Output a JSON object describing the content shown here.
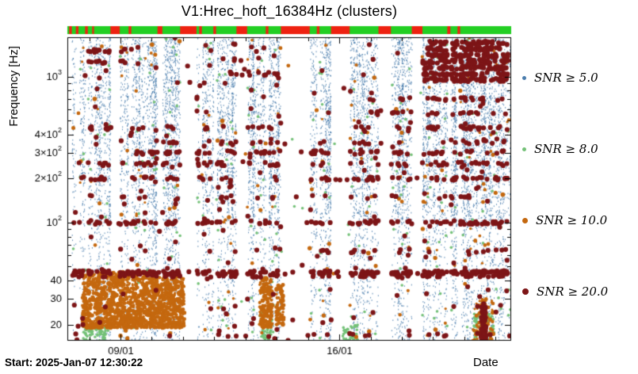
{
  "chart_data": {
    "type": "scatter",
    "title": "V1:Hrec_hoft_16384Hz (clusters)",
    "start_label": "Start: 2025-Jan-07 12:30:22",
    "x_axis": {
      "label": "Date",
      "range_days": [
        7.3,
        21.5
      ],
      "ticks": [
        {
          "day": 9,
          "label": "09/01"
        },
        {
          "day": 16,
          "label": "16/01"
        }
      ],
      "minor_days": [
        8,
        10,
        11,
        12,
        13,
        14,
        15,
        17,
        18,
        19,
        20,
        21
      ]
    },
    "y_axis": {
      "label": "Frequency [Hz]",
      "scale": "log",
      "range_hz": [
        15.5,
        1860
      ],
      "major": [
        {
          "v": 1000,
          "base": "10",
          "exp": "3"
        },
        {
          "v": 400,
          "base": "4×10",
          "exp": "2"
        },
        {
          "v": 300,
          "base": "3×10",
          "exp": "2"
        },
        {
          "v": 200,
          "base": "2×10",
          "exp": "2"
        },
        {
          "v": 100,
          "base": "10",
          "exp": "2"
        },
        {
          "v": 40,
          "base": "40"
        },
        {
          "v": 30,
          "base": "30"
        },
        {
          "v": 20,
          "base": "20"
        }
      ],
      "minor": [
        50,
        60,
        70,
        80,
        90,
        500,
        600,
        700,
        800,
        900
      ]
    },
    "status_bar": {
      "ok_color": "#23cf23",
      "bad_color": "#ee2211",
      "bad_segments": [
        [
          0.004,
          0.01
        ],
        [
          0.019,
          0.025
        ],
        [
          0.04,
          0.046
        ],
        [
          0.056,
          0.06
        ],
        [
          0.097,
          0.118
        ],
        [
          0.138,
          0.144
        ],
        [
          0.203,
          0.214
        ],
        [
          0.254,
          0.291
        ],
        [
          0.297,
          0.303
        ],
        [
          0.329,
          0.335
        ],
        [
          0.381,
          0.405
        ],
        [
          0.447,
          0.453
        ],
        [
          0.481,
          0.546
        ],
        [
          0.562,
          0.568
        ],
        [
          0.594,
          0.636
        ],
        [
          0.701,
          0.729
        ],
        [
          0.776,
          0.8
        ],
        [
          0.856,
          0.863
        ],
        [
          0.879,
          0.885
        ]
      ]
    },
    "legend": [
      {
        "label": "SNR ≥ 5.0",
        "color": "#4a7dad",
        "size": 5
      },
      {
        "label": "SNR ≥ 8.0",
        "color": "#74c178",
        "size": 5
      },
      {
        "label": "SNR ≥ 10.0",
        "color": "#c4680f",
        "size": 7
      },
      {
        "label": "SNR ≥ 20.0",
        "color": "#7d1517",
        "size": 8
      }
    ],
    "series": {
      "snr5": {
        "threshold": 5.0,
        "color": "#4a7dad",
        "count": 30000,
        "y_weights": [
          [
            200,
            1860,
            0.62
          ],
          [
            100,
            200,
            0.15
          ],
          [
            28,
            100,
            0.16
          ],
          [
            15.5,
            28,
            0.07
          ]
        ]
      },
      "snr8": {
        "threshold": 8.0,
        "color": "#74c178",
        "radius": 1.8,
        "scatter_count": 330,
        "clusters": [
          {
            "d0": 7.8,
            "d1": 8.6,
            "f0": 15.5,
            "f1": 20,
            "n": 70
          },
          {
            "d0": 13.5,
            "d1": 13.9,
            "f0": 15.5,
            "f1": 22,
            "n": 45
          },
          {
            "d0": 16.1,
            "d1": 16.6,
            "f0": 15.5,
            "f1": 20,
            "n": 35
          },
          {
            "d0": 20.3,
            "d1": 20.95,
            "f0": 15.5,
            "f1": 24,
            "n": 85
          }
        ]
      },
      "snr10": {
        "threshold": 10.0,
        "color": "#c4680f",
        "radius": 2.6,
        "scatter_count": 250,
        "clusters": [
          {
            "d0": 7.78,
            "d1": 10.15,
            "f0": 19,
            "f1": 46,
            "n": 1050
          },
          {
            "d0": 10.15,
            "d1": 11.05,
            "f0": 19,
            "f1": 43,
            "n": 380
          },
          {
            "d0": 13.45,
            "d1": 13.85,
            "f0": 19,
            "f1": 42,
            "n": 170
          },
          {
            "d0": 13.98,
            "d1": 14.22,
            "f0": 20,
            "f1": 38,
            "n": 70
          },
          {
            "d0": 20.25,
            "d1": 20.95,
            "f0": 15,
            "f1": 30,
            "n": 60
          }
        ],
        "vlines": [
          {
            "day": 20.62,
            "f0": 14.6,
            "f1": 30,
            "n": 90,
            "w": 3
          }
        ]
      },
      "snr20": {
        "threshold": 20.0,
        "color": "#7d1517",
        "radius": 3.1,
        "scatter_count": 310,
        "rows": [
          [
            45.5,
            7.45,
            21.4,
            280
          ],
          [
            43.5,
            7.45,
            21.4,
            160
          ],
          [
            100,
            7.45,
            21.4,
            170
          ],
          [
            64,
            9.0,
            21.4,
            40
          ],
          [
            150,
            8.0,
            21.0,
            45
          ],
          [
            200,
            7.45,
            21.4,
            115
          ],
          [
            252,
            7.45,
            21.4,
            95
          ],
          [
            302,
            9.3,
            21.4,
            110
          ],
          [
            355,
            10.0,
            21.4,
            55
          ],
          [
            445,
            8.0,
            14.0,
            28
          ],
          [
            445,
            16.5,
            21.4,
            38
          ],
          [
            560,
            17.0,
            21.4,
            30
          ],
          [
            17,
            12.0,
            21.3,
            35
          ],
          [
            950,
            18.6,
            21.4,
            55
          ],
          [
            1040,
            18.5,
            21.4,
            62
          ],
          [
            1150,
            18.7,
            21.4,
            55
          ],
          [
            1270,
            18.5,
            21.4,
            62
          ],
          [
            1400,
            18.7,
            21.4,
            55
          ],
          [
            1550,
            18.5,
            21.4,
            60
          ],
          [
            1700,
            18.9,
            21.4,
            42
          ],
          [
            1250,
            7.9,
            9.3,
            16
          ],
          [
            1500,
            7.9,
            9.4,
            18
          ],
          [
            1050,
            12.5,
            14.5,
            20
          ],
          [
            700,
            16.8,
            21.2,
            26
          ]
        ],
        "vlines": [
          {
            "day": 20.62,
            "f0": 14.8,
            "f1": 28,
            "n": 70,
            "w": 3
          }
        ]
      }
    }
  }
}
